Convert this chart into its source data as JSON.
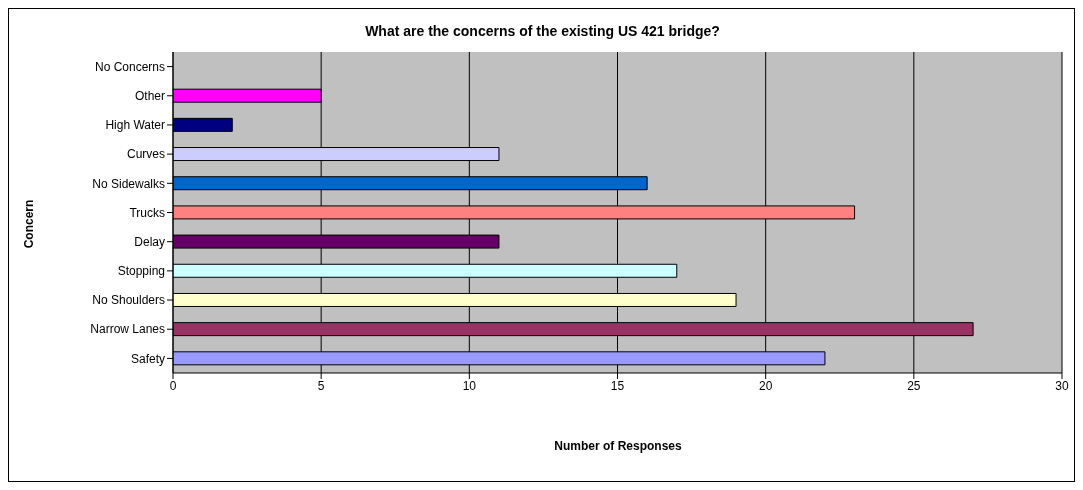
{
  "chart_data": {
    "type": "bar",
    "orientation": "horizontal",
    "title": "What are the concerns of the existing US 421 bridge?",
    "xlabel": "Number of Responses",
    "ylabel": "Concern",
    "categories": [
      "No Concerns",
      "Other",
      "High Water",
      "Curves",
      "No Sidewalks",
      "Trucks",
      "Delay",
      "Stopping",
      "No Shoulders",
      "Narrow Lanes",
      "Safety"
    ],
    "values": [
      0,
      5,
      2,
      11,
      16,
      23,
      11,
      17,
      19,
      27,
      22
    ],
    "colors": [
      "#800000",
      "#ff00ff",
      "#000080",
      "#ccccff",
      "#0066cc",
      "#ff8080",
      "#660066",
      "#ccffff",
      "#ffffcc",
      "#993366",
      "#9999ff"
    ],
    "xlim": [
      0,
      30
    ],
    "xticks": [
      0,
      5,
      10,
      15,
      20,
      25,
      30
    ],
    "grid": "x",
    "legend": false
  }
}
